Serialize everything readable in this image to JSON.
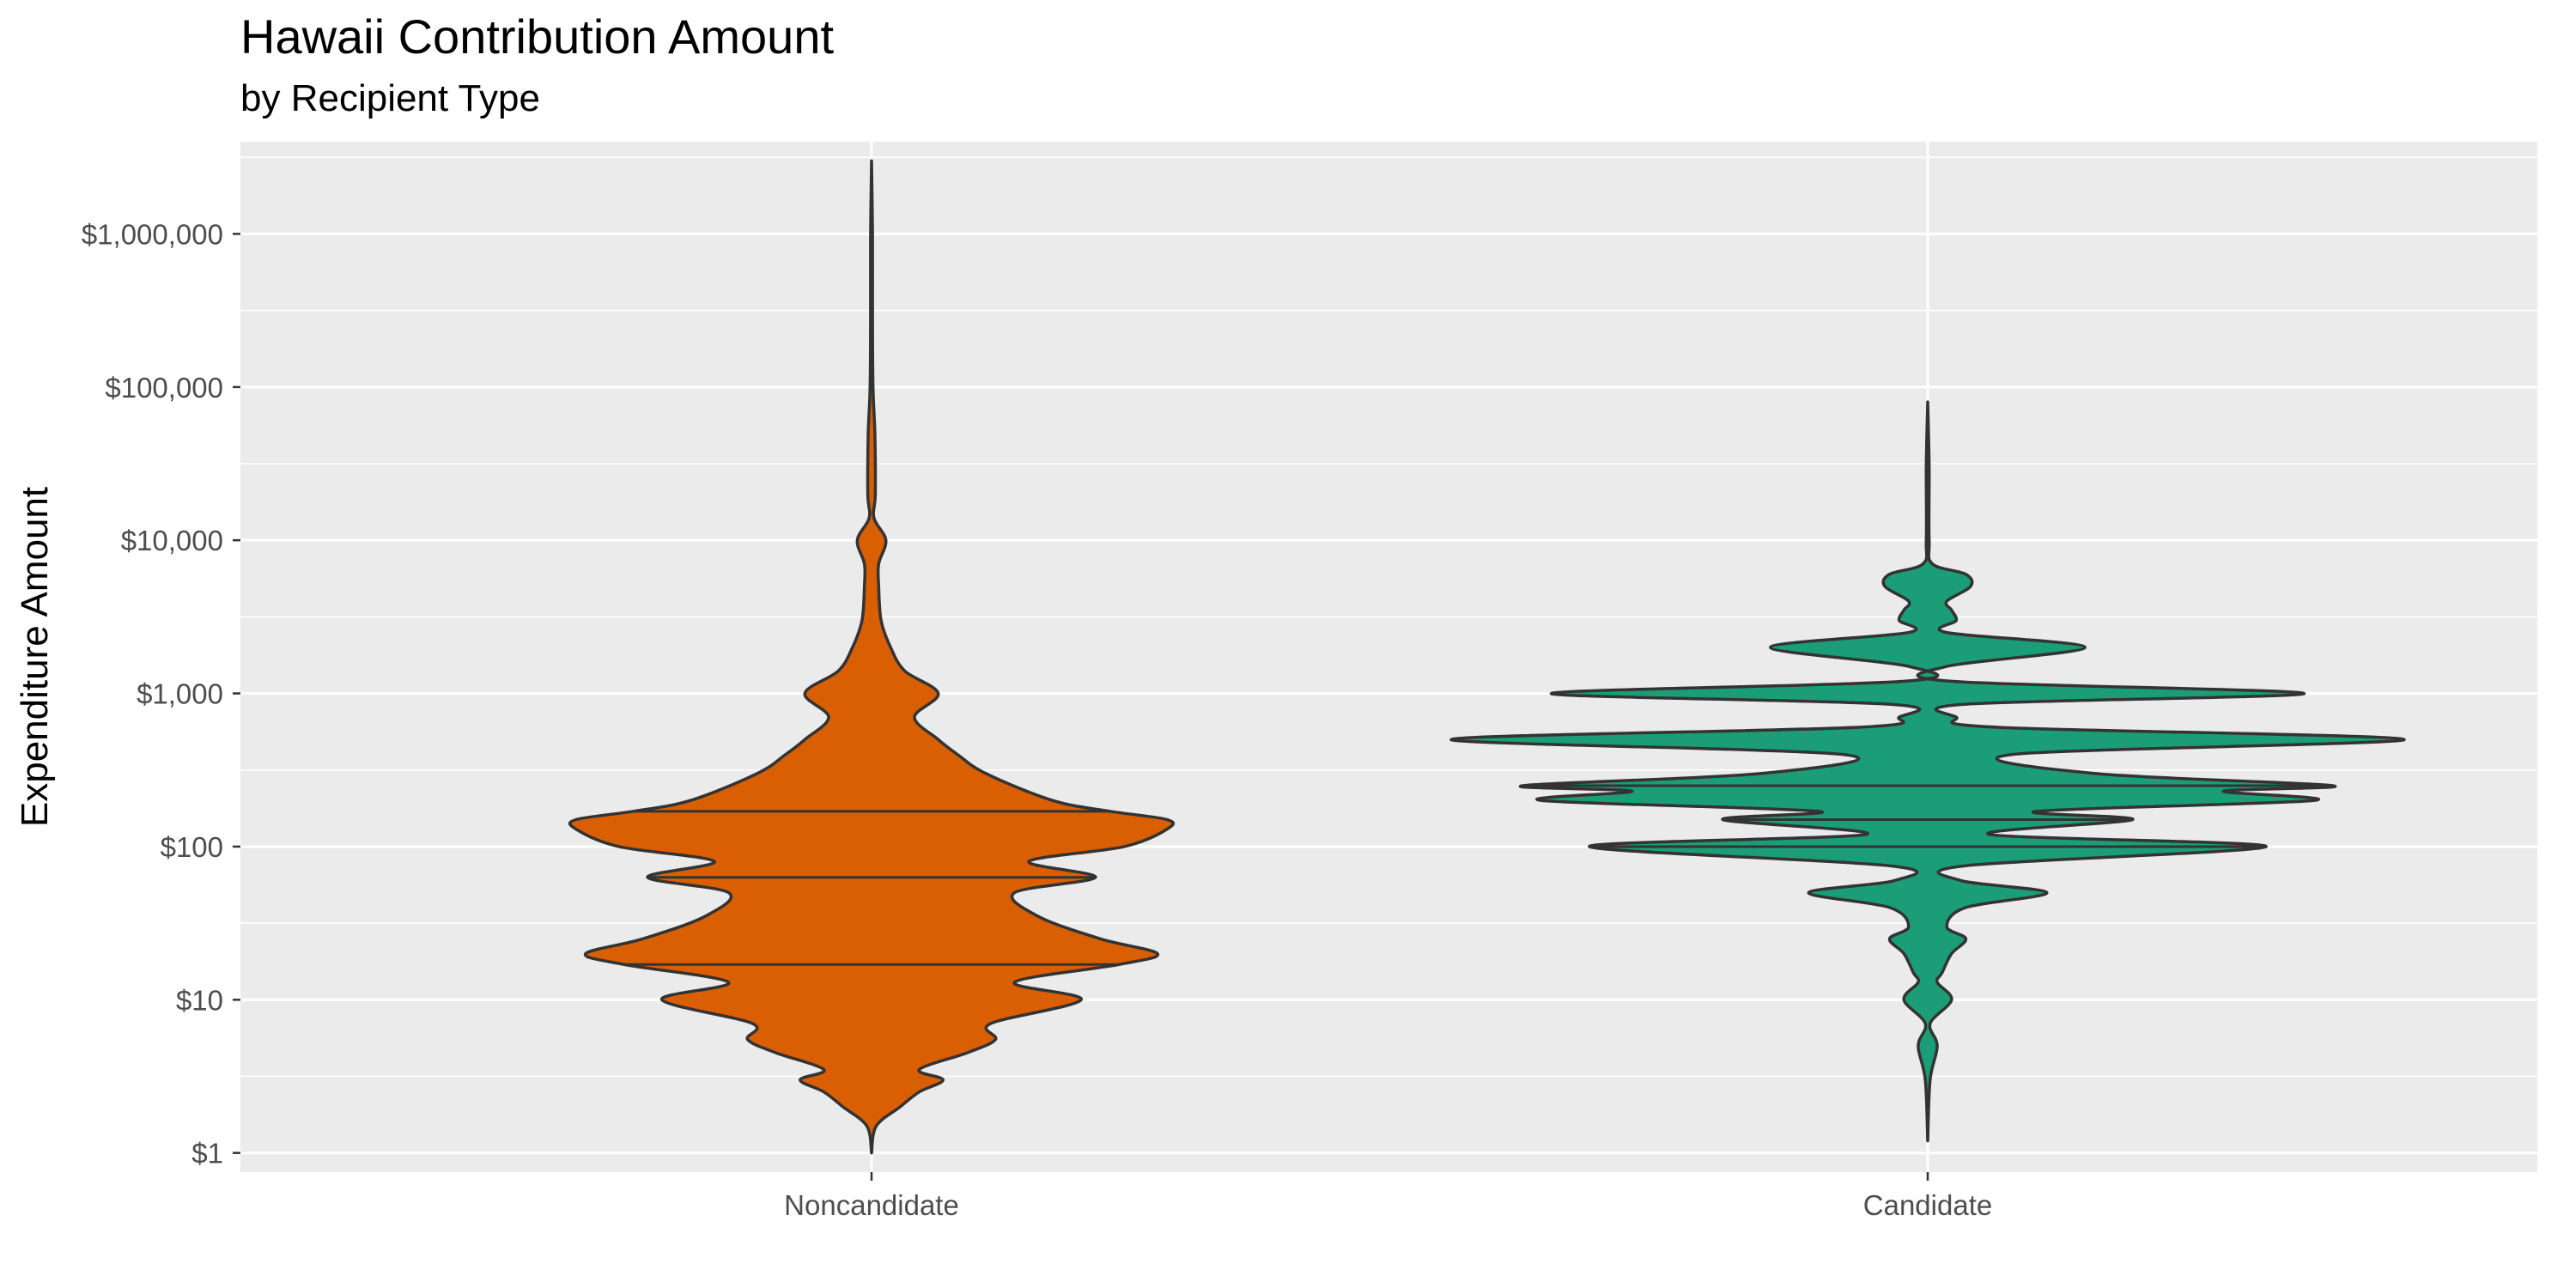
{
  "chart_data": {
    "type": "violin",
    "title": "Hawaii Contribution Amount",
    "subtitle": "by Recipient Type",
    "xlabel": "",
    "ylabel": "Expenditure Amount",
    "y_scale": "log10",
    "ylim": [
      0.75,
      4000000
    ],
    "y_ticks": [
      1,
      10,
      100,
      1000,
      10000,
      100000,
      1000000
    ],
    "y_tick_labels": [
      "$1",
      "$10",
      "$100",
      "$1,000",
      "$10,000",
      "$100,000",
      "$1,000,000"
    ],
    "categories": [
      "Noncandidate",
      "Candidate"
    ],
    "grid": true,
    "legend": "none",
    "colors": {
      "Noncandidate": "#D95F02",
      "Candidate": "#1B9E77",
      "panel": "#EBEBEB",
      "grid": "#FFFFFF",
      "outline": "#333333"
    },
    "series": [
      {
        "category": "Noncandidate",
        "min": 1,
        "max": 3000000,
        "quantiles": {
          "q25": 17,
          "median": 63,
          "q75": 170
        },
        "density_profile": [
          [
            1,
            0.0
          ],
          [
            1.5,
            0.01
          ],
          [
            2,
            0.06
          ],
          [
            2.5,
            0.1
          ],
          [
            3,
            0.15
          ],
          [
            3.5,
            0.1
          ],
          [
            4.5,
            0.2
          ],
          [
            5.5,
            0.26
          ],
          [
            7,
            0.25
          ],
          [
            10,
            0.44
          ],
          [
            13,
            0.3
          ],
          [
            17,
            0.52
          ],
          [
            20,
            0.6
          ],
          [
            25,
            0.48
          ],
          [
            35,
            0.35
          ],
          [
            50,
            0.3
          ],
          [
            63,
            0.47
          ],
          [
            80,
            0.33
          ],
          [
            100,
            0.53
          ],
          [
            130,
            0.62
          ],
          [
            150,
            0.62
          ],
          [
            170,
            0.5
          ],
          [
            200,
            0.38
          ],
          [
            300,
            0.24
          ],
          [
            400,
            0.18
          ],
          [
            500,
            0.14
          ],
          [
            700,
            0.09
          ],
          [
            1000,
            0.14
          ],
          [
            1400,
            0.07
          ],
          [
            2000,
            0.04
          ],
          [
            3000,
            0.02
          ],
          [
            5000,
            0.015
          ],
          [
            7000,
            0.015
          ],
          [
            10000,
            0.03
          ],
          [
            14000,
            0.005
          ],
          [
            20000,
            0.008
          ],
          [
            50000,
            0.007
          ],
          [
            100000,
            0.003
          ],
          [
            300000,
            0.002
          ],
          [
            1000000,
            0.002
          ],
          [
            3000000,
            0.0
          ]
        ]
      },
      {
        "category": "Candidate",
        "min": 1.2,
        "max": 80000,
        "quantiles": {
          "q25": 100,
          "median": 150,
          "q75": 250
        },
        "density_profile": [
          [
            1.2,
            0.0
          ],
          [
            3,
            0.005
          ],
          [
            5,
            0.02
          ],
          [
            7,
            0.005
          ],
          [
            10,
            0.05
          ],
          [
            13,
            0.02
          ],
          [
            15,
            0.03
          ],
          [
            20,
            0.05
          ],
          [
            25,
            0.08
          ],
          [
            30,
            0.04
          ],
          [
            40,
            0.08
          ],
          [
            50,
            0.25
          ],
          [
            60,
            0.07
          ],
          [
            75,
            0.08
          ],
          [
            100,
            0.71
          ],
          [
            120,
            0.13
          ],
          [
            150,
            0.43
          ],
          [
            170,
            0.23
          ],
          [
            200,
            0.81
          ],
          [
            230,
            0.62
          ],
          [
            250,
            0.85
          ],
          [
            300,
            0.35
          ],
          [
            400,
            0.18
          ],
          [
            500,
            1.0
          ],
          [
            600,
            0.15
          ],
          [
            700,
            0.06
          ],
          [
            850,
            0.08
          ],
          [
            1000,
            0.79
          ],
          [
            1200,
            0.05
          ],
          [
            1500,
            0.04
          ],
          [
            2000,
            0.33
          ],
          [
            2500,
            0.04
          ],
          [
            3000,
            0.06
          ],
          [
            3500,
            0.05
          ],
          [
            4000,
            0.04
          ],
          [
            5000,
            0.09
          ],
          [
            6000,
            0.08
          ],
          [
            7000,
            0.01
          ],
          [
            10000,
            0.003
          ],
          [
            30000,
            0.003
          ],
          [
            80000,
            0.0
          ]
        ]
      }
    ]
  }
}
